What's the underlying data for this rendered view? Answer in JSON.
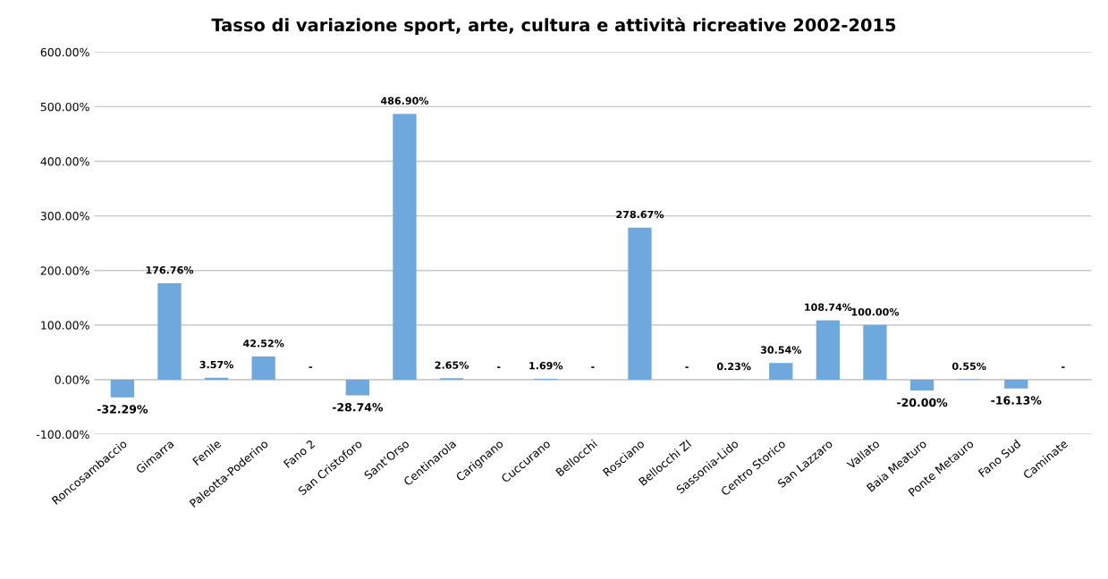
{
  "chart_data": {
    "type": "bar",
    "title": "Tasso di variazione sport, arte, cultura e attività ricreative 2002-2015",
    "categories": [
      "Roncosambaccio",
      "Gimarra",
      "Fenile",
      "Paleotta-Poderino",
      "Fano 2",
      "San Cristoforo",
      "Sant'Orso",
      "Centinarola",
      "Carignano",
      "Cuccurano",
      "Bellocchi",
      "Rosciano",
      "Bellocchi ZI",
      "Sassonia-Lido",
      "Centro Storico",
      "San Lazzaro",
      "Vallato",
      "Baia Meaturo",
      "Ponte Metauro",
      "Fano Sud",
      "Caminate"
    ],
    "values": [
      -32.29,
      176.76,
      3.57,
      42.52,
      0,
      -28.74,
      486.9,
      2.65,
      0,
      1.69,
      0,
      278.67,
      0,
      0.23,
      30.54,
      108.74,
      100.0,
      -20.0,
      0.55,
      -16.13,
      0
    ],
    "value_labels": [
      "-32.29%",
      "176.76%",
      "3.57%",
      "42.52%",
      "-",
      "-28.74%",
      "486.90%",
      "2.65%",
      "-",
      "1.69%",
      "-",
      "278.67%",
      "-",
      "0.23%",
      "30.54%",
      "108.74%",
      "100.00%",
      "-20.00%",
      "0.55%",
      "-16.13%",
      "-"
    ],
    "color": "#6fa8dc",
    "ylim": [
      -100,
      600
    ],
    "yticks": [
      {
        "value": -100,
        "label": "-100.00%"
      },
      {
        "value": 0,
        "label": "0.00%"
      },
      {
        "value": 100,
        "label": "100.00%"
      },
      {
        "value": 200,
        "label": "200.00%"
      },
      {
        "value": 300,
        "label": "300.00%"
      },
      {
        "value": 400,
        "label": "400.00%"
      },
      {
        "value": 500,
        "label": "500.00%"
      },
      {
        "value": 600,
        "label": "600.00%"
      }
    ],
    "grid": "y"
  }
}
